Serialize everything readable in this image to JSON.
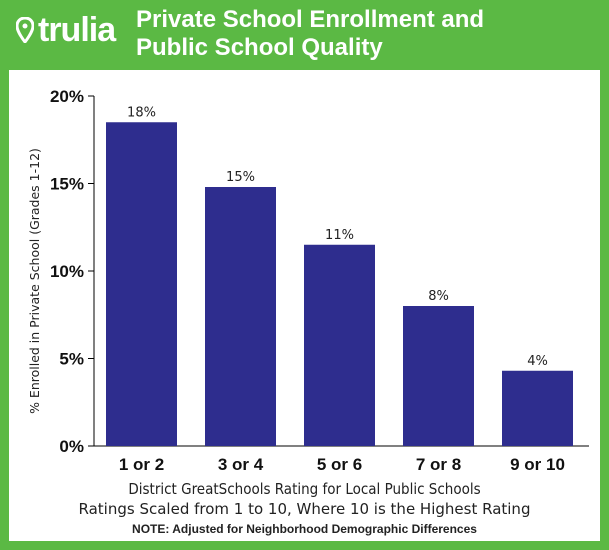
{
  "header": {
    "brand": "trulia",
    "title_line1": "Private School Enrollment and",
    "title_line2": "Public School Quality"
  },
  "colors": {
    "background": "#5bb944",
    "bar": "#2e2d8e",
    "panel": "#ffffff"
  },
  "chart_data": {
    "type": "bar",
    "title": "Private School Enrollment and Public School Quality",
    "categories": [
      "1 or 2",
      "3 or 4",
      "5 or 6",
      "7 or 8",
      "9 or 10"
    ],
    "values": [
      18.5,
      14.8,
      11.5,
      8.0,
      4.3
    ],
    "data_labels": [
      "18%",
      "15%",
      "11%",
      "8%",
      "4%"
    ],
    "ylabel": "% Enrolled in Private School (Grades 1-12)",
    "xlabel": "District GreatSchools Rating for Local Public Schools",
    "xlabel_sub": "Ratings Scaled from 1 to 10, Where 10 is the Highest Rating",
    "note": "NOTE: Adjusted for Neighborhood Demographic Differences",
    "ylim": [
      0,
      20
    ],
    "yticks": [
      0,
      5,
      10,
      15,
      20
    ],
    "ytick_labels": [
      "0%",
      "5%",
      "10%",
      "15%",
      "20%"
    ]
  }
}
